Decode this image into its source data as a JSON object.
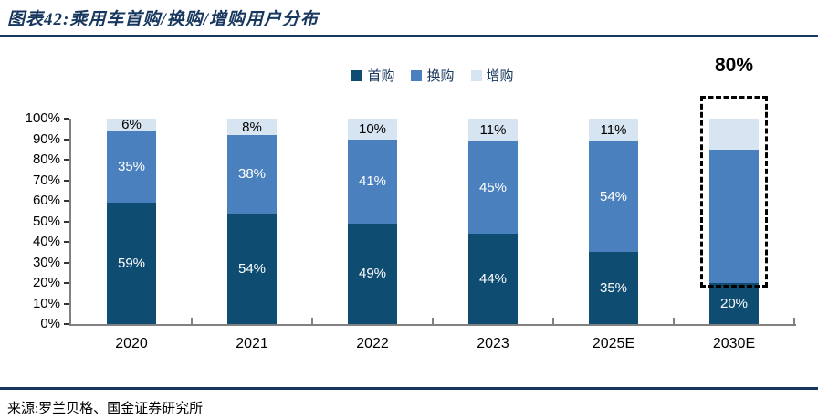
{
  "figure": {
    "title": "图表42:乘用车首购/换购/增购用户分布",
    "source": "来源:罗兰贝格、国金证券研究所"
  },
  "colors": {
    "title_navy": "#17375e",
    "axis_gray": "#808080",
    "tick_dark": "#333333"
  },
  "chart_data": {
    "type": "bar",
    "stacked": true,
    "grid": false,
    "legend_position": "top",
    "categories": [
      "2020",
      "2021",
      "2022",
      "2023",
      "2025E",
      "2030E"
    ],
    "series": [
      {
        "name": "首购",
        "color": "#0e4c72",
        "values": [
          59,
          54,
          49,
          44,
          35,
          20
        ],
        "labels": [
          "59%",
          "54%",
          "49%",
          "44%",
          "35%",
          "20%"
        ],
        "label_color": "#ffffff"
      },
      {
        "name": "换购",
        "color": "#4a80bd",
        "values": [
          35,
          38,
          41,
          45,
          54,
          65
        ],
        "labels": [
          "35%",
          "38%",
          "41%",
          "45%",
          "54%",
          ""
        ],
        "label_color": "#ffffff"
      },
      {
        "name": "增购",
        "color": "#d7e4f1",
        "values": [
          6,
          8,
          10,
          11,
          11,
          15
        ],
        "labels": [
          "6%",
          "8%",
          "10%",
          "11%",
          "11%",
          ""
        ],
        "label_color": "#000000"
      }
    ],
    "ylim": [
      0,
      100
    ],
    "y_ticks": [
      "0%",
      "10%",
      "20%",
      "30%",
      "40%",
      "50%",
      "60%",
      "70%",
      "80%",
      "90%",
      "100%"
    ],
    "annotation": {
      "text": "80%",
      "category": "2030E",
      "covers_series": [
        "换购",
        "增购"
      ]
    }
  }
}
